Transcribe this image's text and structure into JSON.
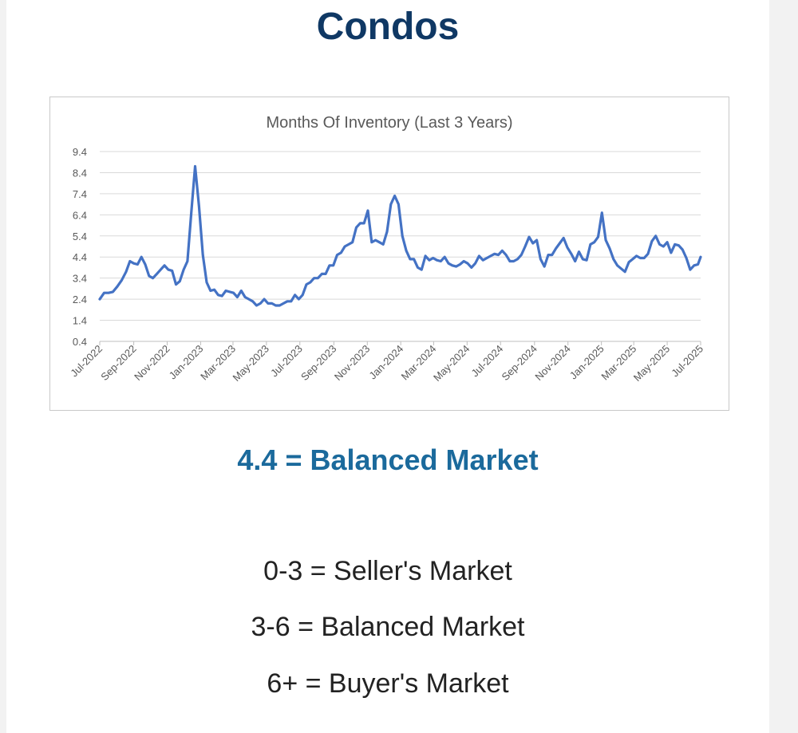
{
  "page": {
    "heading": "Condos",
    "status_text": "4.4 = Balanced Market",
    "scale": [
      "0-3 = Seller's Market",
      "3-6 = Balanced Market",
      "6+ = Buyer's Market"
    ]
  },
  "colors": {
    "heading": "#0f3864",
    "status": "#1b6a9c",
    "line": "#4472c4",
    "grid": "#d9d9d9"
  },
  "chart_data": {
    "type": "line",
    "title": "Months Of Inventory (Last 3 Years)",
    "xlabel": "",
    "ylabel": "",
    "ylim": [
      0.4,
      9.4
    ],
    "yticks": [
      0.4,
      1.4,
      2.4,
      3.4,
      4.4,
      5.4,
      6.4,
      7.4,
      8.4,
      9.4
    ],
    "grid": true,
    "legend": "none",
    "x_ticks": [
      "Jul-2022",
      "Sep-2022",
      "Nov-2022",
      "Jan-2023",
      "Mar-2023",
      "May-2023",
      "Jul-2023",
      "Sep-2023",
      "Nov-2023",
      "Jan-2024",
      "Mar-2024",
      "May-2024",
      "Jul-2024",
      "Sep-2024",
      "Nov-2024",
      "Jan-2025",
      "Mar-2025",
      "May-2025",
      "Jul-2025"
    ],
    "x_range": [
      "2022-07-01",
      "2025-07-01"
    ],
    "series": [
      {
        "points": [
          [
            "2022-07-01",
            2.4
          ],
          [
            "2022-07-09",
            2.7
          ],
          [
            "2022-07-17",
            2.7
          ],
          [
            "2022-07-25",
            2.75
          ],
          [
            "2022-08-02",
            3.0
          ],
          [
            "2022-08-10",
            3.3
          ],
          [
            "2022-08-18",
            3.7
          ],
          [
            "2022-08-25",
            4.2
          ],
          [
            "2022-09-01",
            4.1
          ],
          [
            "2022-09-08",
            4.05
          ],
          [
            "2022-09-15",
            4.4
          ],
          [
            "2022-09-22",
            4.05
          ],
          [
            "2022-09-29",
            3.5
          ],
          [
            "2022-10-06",
            3.4
          ],
          [
            "2022-10-13",
            3.6
          ],
          [
            "2022-10-20",
            3.8
          ],
          [
            "2022-10-27",
            4.0
          ],
          [
            "2022-11-03",
            3.8
          ],
          [
            "2022-11-10",
            3.75
          ],
          [
            "2022-11-17",
            3.1
          ],
          [
            "2022-11-24",
            3.25
          ],
          [
            "2022-12-01",
            3.8
          ],
          [
            "2022-12-08",
            4.2
          ],
          [
            "2022-12-15",
            6.5
          ],
          [
            "2022-12-22",
            8.7
          ],
          [
            "2022-12-29",
            6.8
          ],
          [
            "2023-01-05",
            4.5
          ],
          [
            "2023-01-12",
            3.2
          ],
          [
            "2023-01-19",
            2.8
          ],
          [
            "2023-01-26",
            2.85
          ],
          [
            "2023-02-02",
            2.6
          ],
          [
            "2023-02-09",
            2.55
          ],
          [
            "2023-02-16",
            2.8
          ],
          [
            "2023-02-23",
            2.75
          ],
          [
            "2023-03-02",
            2.7
          ],
          [
            "2023-03-09",
            2.5
          ],
          [
            "2023-03-16",
            2.8
          ],
          [
            "2023-03-23",
            2.5
          ],
          [
            "2023-03-30",
            2.4
          ],
          [
            "2023-04-06",
            2.3
          ],
          [
            "2023-04-13",
            2.1
          ],
          [
            "2023-04-20",
            2.2
          ],
          [
            "2023-04-27",
            2.4
          ],
          [
            "2023-05-04",
            2.2
          ],
          [
            "2023-05-11",
            2.2
          ],
          [
            "2023-05-18",
            2.1
          ],
          [
            "2023-05-25",
            2.1
          ],
          [
            "2023-06-01",
            2.2
          ],
          [
            "2023-06-08",
            2.3
          ],
          [
            "2023-06-15",
            2.3
          ],
          [
            "2023-06-22",
            2.6
          ],
          [
            "2023-06-29",
            2.4
          ],
          [
            "2023-07-06",
            2.6
          ],
          [
            "2023-07-13",
            3.1
          ],
          [
            "2023-07-20",
            3.2
          ],
          [
            "2023-07-27",
            3.4
          ],
          [
            "2023-08-03",
            3.4
          ],
          [
            "2023-08-10",
            3.6
          ],
          [
            "2023-08-17",
            3.6
          ],
          [
            "2023-08-24",
            4.0
          ],
          [
            "2023-08-31",
            4.0
          ],
          [
            "2023-09-07",
            4.5
          ],
          [
            "2023-09-14",
            4.6
          ],
          [
            "2023-09-21",
            4.9
          ],
          [
            "2023-09-28",
            5.0
          ],
          [
            "2023-10-05",
            5.1
          ],
          [
            "2023-10-12",
            5.8
          ],
          [
            "2023-10-19",
            6.0
          ],
          [
            "2023-10-26",
            6.0
          ],
          [
            "2023-11-02",
            6.6
          ],
          [
            "2023-11-09",
            5.1
          ],
          [
            "2023-11-16",
            5.2
          ],
          [
            "2023-11-23",
            5.1
          ],
          [
            "2023-11-30",
            5.0
          ],
          [
            "2023-12-07",
            5.6
          ],
          [
            "2023-12-14",
            6.9
          ],
          [
            "2023-12-21",
            7.3
          ],
          [
            "2023-12-28",
            6.9
          ],
          [
            "2024-01-04",
            5.4
          ],
          [
            "2024-01-11",
            4.7
          ],
          [
            "2024-01-18",
            4.3
          ],
          [
            "2024-01-25",
            4.3
          ],
          [
            "2024-02-01",
            3.9
          ],
          [
            "2024-02-08",
            3.8
          ],
          [
            "2024-02-15",
            4.45
          ],
          [
            "2024-02-22",
            4.25
          ],
          [
            "2024-02-29",
            4.35
          ],
          [
            "2024-03-07",
            4.25
          ],
          [
            "2024-03-14",
            4.2
          ],
          [
            "2024-03-21",
            4.4
          ],
          [
            "2024-03-28",
            4.1
          ],
          [
            "2024-04-04",
            4.0
          ],
          [
            "2024-04-11",
            3.95
          ],
          [
            "2024-04-18",
            4.05
          ],
          [
            "2024-04-25",
            4.2
          ],
          [
            "2024-05-02",
            4.1
          ],
          [
            "2024-05-09",
            3.9
          ],
          [
            "2024-05-16",
            4.1
          ],
          [
            "2024-05-23",
            4.45
          ],
          [
            "2024-05-30",
            4.25
          ],
          [
            "2024-06-06",
            4.35
          ],
          [
            "2024-06-13",
            4.45
          ],
          [
            "2024-06-20",
            4.55
          ],
          [
            "2024-06-27",
            4.5
          ],
          [
            "2024-07-04",
            4.7
          ],
          [
            "2024-07-11",
            4.5
          ],
          [
            "2024-07-18",
            4.2
          ],
          [
            "2024-07-25",
            4.2
          ],
          [
            "2024-08-01",
            4.3
          ],
          [
            "2024-08-08",
            4.5
          ],
          [
            "2024-08-15",
            4.9
          ],
          [
            "2024-08-22",
            5.35
          ],
          [
            "2024-08-29",
            5.05
          ],
          [
            "2024-09-05",
            5.2
          ],
          [
            "2024-09-12",
            4.3
          ],
          [
            "2024-09-19",
            3.95
          ],
          [
            "2024-09-26",
            4.5
          ],
          [
            "2024-10-03",
            4.5
          ],
          [
            "2024-10-10",
            4.8
          ],
          [
            "2024-10-17",
            5.05
          ],
          [
            "2024-10-24",
            5.3
          ],
          [
            "2024-10-31",
            4.85
          ],
          [
            "2024-11-07",
            4.55
          ],
          [
            "2024-11-14",
            4.2
          ],
          [
            "2024-11-21",
            4.65
          ],
          [
            "2024-11-28",
            4.3
          ],
          [
            "2024-12-05",
            4.25
          ],
          [
            "2024-12-12",
            5.0
          ],
          [
            "2024-12-19",
            5.1
          ],
          [
            "2024-12-26",
            5.35
          ],
          [
            "2025-01-02",
            6.5
          ],
          [
            "2025-01-09",
            5.2
          ],
          [
            "2025-01-16",
            4.8
          ],
          [
            "2025-01-23",
            4.3
          ],
          [
            "2025-01-30",
            4.0
          ],
          [
            "2025-02-06",
            3.85
          ],
          [
            "2025-02-13",
            3.7
          ],
          [
            "2025-02-20",
            4.15
          ],
          [
            "2025-02-27",
            4.3
          ],
          [
            "2025-03-06",
            4.45
          ],
          [
            "2025-03-13",
            4.35
          ],
          [
            "2025-03-20",
            4.35
          ],
          [
            "2025-03-27",
            4.55
          ],
          [
            "2025-04-03",
            5.15
          ],
          [
            "2025-04-10",
            5.4
          ],
          [
            "2025-04-17",
            5.0
          ],
          [
            "2025-04-24",
            4.9
          ],
          [
            "2025-05-01",
            5.1
          ],
          [
            "2025-05-08",
            4.6
          ],
          [
            "2025-05-15",
            5.0
          ],
          [
            "2025-05-22",
            4.95
          ],
          [
            "2025-05-29",
            4.75
          ],
          [
            "2025-06-05",
            4.35
          ],
          [
            "2025-06-12",
            3.8
          ],
          [
            "2025-06-19",
            4.0
          ],
          [
            "2025-06-26",
            4.05
          ],
          [
            "2025-07-01",
            4.4
          ]
        ]
      }
    ]
  }
}
